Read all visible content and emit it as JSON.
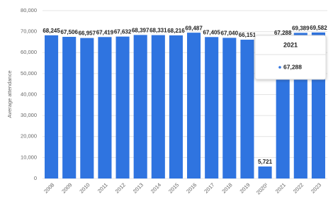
{
  "chart_data": {
    "type": "bar",
    "y_label": "Average attendance",
    "categories": [
      "2008",
      "2009",
      "2010",
      "2011",
      "2012",
      "2013",
      "2014",
      "2015",
      "2016",
      "2017",
      "2018",
      "2019",
      "2020¹",
      "2021",
      "2022",
      "2023"
    ],
    "values": [
      68245,
      67506,
      66957,
      67419,
      67632,
      68397,
      68331,
      68216,
      69487,
      67405,
      67040,
      66151,
      5721,
      67288,
      69389,
      69582
    ],
    "value_labels": [
      "68,245",
      "67,506",
      "66,957",
      "67,419",
      "67,632",
      "68,397",
      "68,331",
      "68,216",
      "69,487",
      "67,405",
      "67,040",
      "66,151",
      "5,721",
      "67,288",
      "69,389",
      "69,582"
    ],
    "color": "#2f74e0",
    "ylim": [
      0,
      80000
    ],
    "yticks": [
      0,
      {
        "value": 10000,
        "label": "10,000"
      },
      {
        "value": 20000,
        "label": "20,000"
      },
      {
        "value": 30000,
        "label": "30,000"
      },
      {
        "value": 40000,
        "label": "40,000"
      },
      {
        "value": 50000,
        "label": "50,000"
      },
      {
        "value": 60000,
        "label": "60,000"
      },
      {
        "value": 70000,
        "label": "70,000"
      },
      {
        "value": 80000,
        "label": "80,000"
      }
    ],
    "grid": true,
    "tooltip_index": 13
  }
}
